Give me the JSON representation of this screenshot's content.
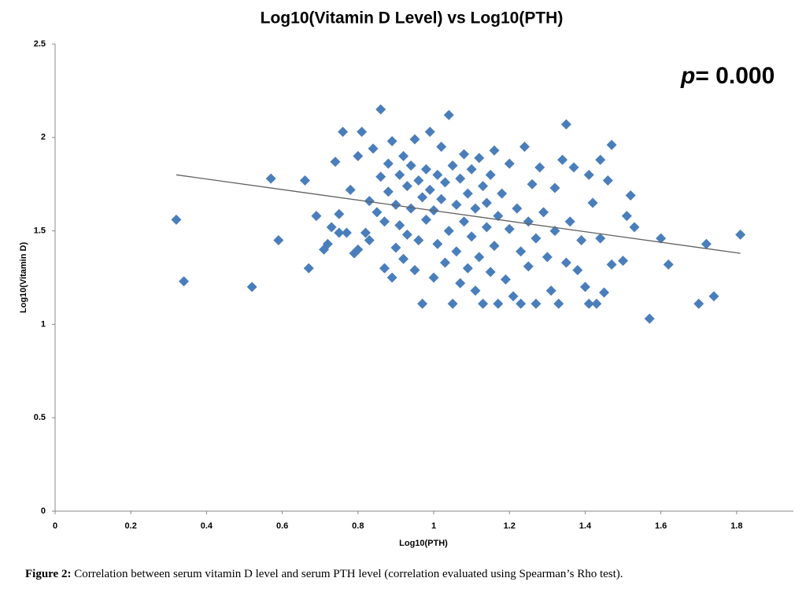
{
  "chart_data": {
    "type": "scatter",
    "title": "Log10(Vitamin D Level) vs Log10(PTH)",
    "x_label": "Log10(PTH)",
    "y_label": "Log10(Vitamin D)",
    "annotation_parts": [
      "p",
      "= 0.000"
    ],
    "color": "#4a7ebb",
    "xlim": [
      0,
      1.95
    ],
    "ylim": [
      0,
      2.5
    ],
    "xticks": [
      0,
      0.2,
      0.4,
      0.6,
      0.8,
      1,
      1.2,
      1.4,
      1.6,
      1.8
    ],
    "yticks": [
      0,
      0.5,
      1,
      1.5,
      2,
      2.5
    ],
    "x": [
      0.32,
      0.34,
      0.52,
      0.57,
      0.59,
      0.66,
      0.67,
      0.69,
      0.71,
      0.72,
      0.73,
      0.74,
      0.75,
      0.75,
      0.76,
      0.77,
      0.78,
      0.79,
      0.8,
      0.8,
      0.81,
      0.82,
      0.83,
      0.83,
      0.84,
      0.85,
      0.86,
      0.86,
      0.87,
      0.87,
      0.88,
      0.88,
      0.89,
      0.89,
      0.9,
      0.9,
      0.91,
      0.91,
      0.92,
      0.92,
      0.93,
      0.93,
      0.94,
      0.94,
      0.95,
      0.95,
      0.96,
      0.96,
      0.97,
      0.97,
      0.98,
      0.98,
      0.99,
      0.99,
      1.0,
      1.0,
      1.01,
      1.01,
      1.02,
      1.02,
      1.03,
      1.03,
      1.04,
      1.04,
      1.05,
      1.05,
      1.06,
      1.06,
      1.07,
      1.07,
      1.08,
      1.08,
      1.09,
      1.09,
      1.1,
      1.1,
      1.11,
      1.11,
      1.12,
      1.12,
      1.13,
      1.13,
      1.14,
      1.14,
      1.15,
      1.15,
      1.16,
      1.16,
      1.17,
      1.17,
      1.18,
      1.19,
      1.2,
      1.2,
      1.21,
      1.22,
      1.23,
      1.23,
      1.24,
      1.25,
      1.25,
      1.26,
      1.27,
      1.27,
      1.28,
      1.29,
      1.3,
      1.31,
      1.32,
      1.32,
      1.33,
      1.34,
      1.35,
      1.35,
      1.36,
      1.37,
      1.38,
      1.39,
      1.4,
      1.41,
      1.41,
      1.42,
      1.43,
      1.44,
      1.44,
      1.45,
      1.46,
      1.47,
      1.47,
      1.5,
      1.51,
      1.52,
      1.53,
      1.57,
      1.6,
      1.62,
      1.7,
      1.72,
      1.74,
      1.81
    ],
    "y": [
      1.56,
      1.23,
      1.2,
      1.78,
      1.45,
      1.77,
      1.3,
      1.58,
      1.4,
      1.43,
      1.52,
      1.87,
      1.59,
      1.49,
      2.03,
      1.49,
      1.72,
      1.38,
      1.4,
      1.9,
      2.03,
      1.49,
      1.45,
      1.66,
      1.94,
      1.6,
      2.15,
      1.79,
      1.55,
      1.3,
      1.86,
      1.71,
      1.25,
      1.98,
      1.64,
      1.41,
      1.8,
      1.53,
      1.35,
      1.9,
      1.74,
      1.48,
      1.85,
      1.62,
      1.99,
      1.29,
      1.77,
      1.45,
      1.11,
      1.68,
      1.83,
      1.56,
      2.03,
      1.72,
      1.25,
      1.61,
      1.8,
      1.43,
      1.95,
      1.67,
      1.33,
      1.76,
      2.12,
      1.5,
      1.11,
      1.85,
      1.64,
      1.39,
      1.22,
      1.78,
      1.91,
      1.55,
      1.7,
      1.3,
      1.83,
      1.47,
      1.62,
      1.18,
      1.89,
      1.36,
      1.11,
      1.74,
      1.52,
      1.65,
      1.28,
      1.8,
      1.93,
      1.42,
      1.11,
      1.58,
      1.7,
      1.24,
      1.51,
      1.86,
      1.15,
      1.62,
      1.39,
      1.11,
      1.95,
      1.55,
      1.31,
      1.75,
      1.11,
      1.46,
      1.84,
      1.6,
      1.36,
      1.18,
      1.73,
      1.5,
      1.11,
      1.88,
      2.07,
      1.33,
      1.55,
      1.84,
      1.29,
      1.45,
      1.2,
      1.8,
      1.11,
      1.65,
      1.11,
      1.88,
      1.46,
      1.17,
      1.77,
      1.96,
      1.32,
      1.34,
      1.58,
      1.69,
      1.52,
      1.03,
      1.46,
      1.32,
      1.11,
      1.43,
      1.15,
      1.48
    ],
    "trendline": {
      "x": [
        0.32,
        1.81
      ],
      "y": [
        1.8,
        1.38
      ],
      "color": "#606060"
    }
  },
  "caption": {
    "label": "Figure 2:",
    "text": "Correlation between serum vitamin D level and serum PTH level (correlation evaluated using Spearman’s Rho test)."
  }
}
